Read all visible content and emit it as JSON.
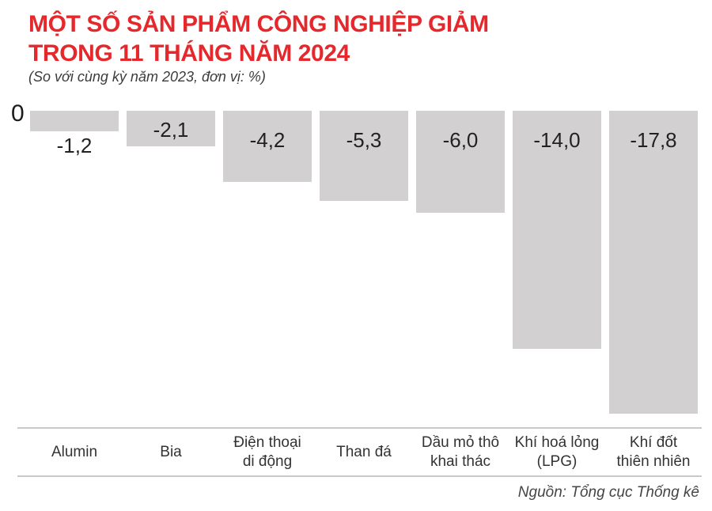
{
  "header": {
    "title_line1": "MỘT SỐ SẢN PHẨM CÔNG NGHIỆP GIẢM",
    "title_line2": "TRONG 11 THÁNG NĂM 2024",
    "subtitle": "(So với cùng kỳ năm 2023, đơn vị: %)"
  },
  "chart_data": {
    "type": "bar",
    "orientation": "vertical",
    "title": "MỘT SỐ SẢN PHẨM CÔNG NGHIỆP GIẢM TRONG 11 THÁNG NĂM 2024",
    "subtitle": "(So với cùng kỳ năm 2023, đơn vị: %)",
    "unit": "%",
    "categories": [
      "Alumin",
      "Bia",
      "Điện thoại\ndi động",
      "Than đá",
      "Dầu mỏ thô\nkhai thác",
      "Khí hoá lỏng\n(LPG)",
      "Khí đốt\nthiên nhiên"
    ],
    "values": [
      -1.2,
      -2.1,
      -4.2,
      -5.3,
      -6.0,
      -14.0,
      -17.8
    ],
    "value_labels": [
      "-1,2",
      "-2,1",
      "-4,2",
      "-5,3",
      "-6,0",
      "-14,0",
      "-17,8"
    ],
    "axis_zero_label": "0",
    "ylim": [
      -17.8,
      0
    ],
    "grid": false,
    "legend": false,
    "bar_color": "#d3d0d2"
  },
  "footer": {
    "source": "Nguồn: Tổng cục Thống kê"
  },
  "colors": {
    "title_red": "#e5282c",
    "bar_gray": "#d3d0d2",
    "axis_line": "#c9c9c9",
    "value_text": "#222222",
    "category_text": "#333333",
    "source_text": "#454545"
  }
}
